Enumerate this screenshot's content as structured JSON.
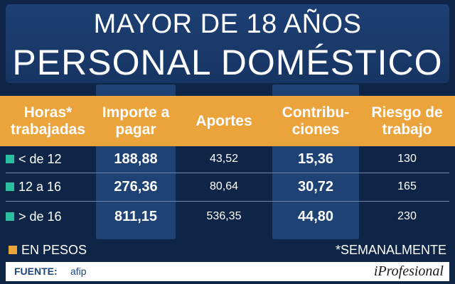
{
  "title": {
    "line1": "MAYOR DE 18 AÑOS",
    "line2": "PERSONAL DOMÉSTICO"
  },
  "colors": {
    "background": "#0e2548",
    "header_orange": "#eba33c",
    "column_band": "#1e4273",
    "bullet_teal": "#2bbfa0",
    "bullet_orange": "#eba33c"
  },
  "table": {
    "columns": [
      {
        "key": "hours",
        "label": "Horas* trabajadas"
      },
      {
        "key": "amount",
        "label": "Importe a pagar"
      },
      {
        "key": "contributions",
        "label": "Aportes"
      },
      {
        "key": "employer",
        "label": "Contribu-ciones"
      },
      {
        "key": "risk",
        "label": "Riesgo de trabajo"
      }
    ],
    "rows": [
      {
        "hours": "< de 12",
        "amount": "188,88",
        "contributions": "43,52",
        "employer": "15,36",
        "risk": "130"
      },
      {
        "hours": "12 a 16",
        "amount": "276,36",
        "contributions": "80,64",
        "employer": "30,72",
        "risk": "165"
      },
      {
        "hours": "> de 16",
        "amount": "811,15",
        "contributions": "536,35",
        "employer": "44,80",
        "risk": "230"
      }
    ]
  },
  "legend": {
    "currency": "EN PESOS",
    "note": "*SEMANALMENTE"
  },
  "footer": {
    "source_label": "FUENTE:",
    "source_value": "afip",
    "brand": "iProfesional"
  }
}
